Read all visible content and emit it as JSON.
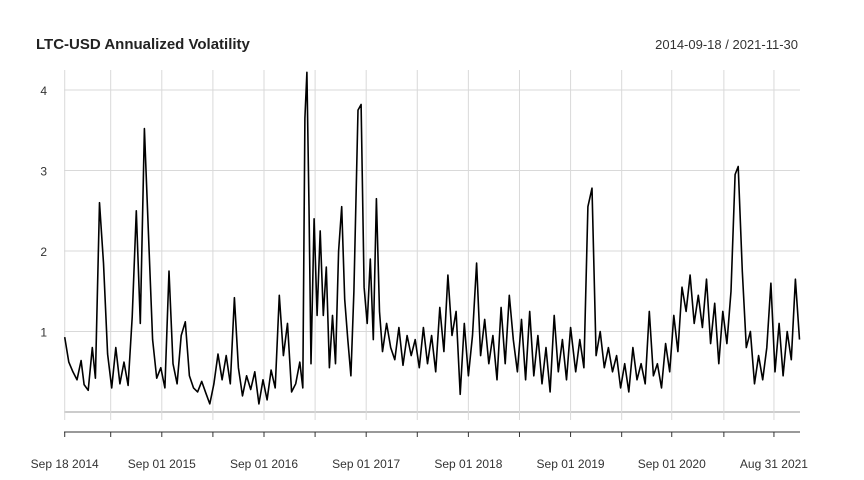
{
  "chart_data": {
    "type": "line",
    "title": "LTC-USD Annualized Volatility",
    "subtitle": "2014-09-18 / 2021-11-30",
    "xlabel": "",
    "ylabel": "",
    "x_tick_labels": [
      "Sep 18 2014",
      "Sep 01 2015",
      "Sep 01 2016",
      "Sep 01 2017",
      "Sep 01 2018",
      "Sep 01 2019",
      "Sep 01 2020",
      "Aug 31 2021"
    ],
    "y_ticks": [
      1,
      2,
      3,
      4
    ],
    "ylim": [
      0,
      4.22
    ],
    "grid": true,
    "series": [
      {
        "values": [
          [
            2014.72,
            0.93
          ],
          [
            2014.76,
            0.62
          ],
          [
            2014.8,
            0.5
          ],
          [
            2014.84,
            0.4
          ],
          [
            2014.88,
            0.64
          ],
          [
            2014.91,
            0.34
          ],
          [
            2014.95,
            0.27
          ],
          [
            2014.99,
            0.8
          ],
          [
            2015.02,
            0.42
          ],
          [
            2015.06,
            2.6
          ],
          [
            2015.1,
            1.85
          ],
          [
            2015.14,
            0.72
          ],
          [
            2015.18,
            0.3
          ],
          [
            2015.22,
            0.8
          ],
          [
            2015.26,
            0.35
          ],
          [
            2015.3,
            0.62
          ],
          [
            2015.34,
            0.33
          ],
          [
            2015.38,
            1.18
          ],
          [
            2015.42,
            2.5
          ],
          [
            2015.46,
            1.1
          ],
          [
            2015.5,
            3.52
          ],
          [
            2015.54,
            2.2
          ],
          [
            2015.58,
            0.9
          ],
          [
            2015.62,
            0.42
          ],
          [
            2015.66,
            0.55
          ],
          [
            2015.7,
            0.3
          ],
          [
            2015.74,
            1.75
          ],
          [
            2015.78,
            0.6
          ],
          [
            2015.82,
            0.35
          ],
          [
            2015.86,
            0.95
          ],
          [
            2015.9,
            1.12
          ],
          [
            2015.94,
            0.45
          ],
          [
            2015.98,
            0.3
          ],
          [
            2016.02,
            0.25
          ],
          [
            2016.06,
            0.38
          ],
          [
            2016.1,
            0.24
          ],
          [
            2016.14,
            0.1
          ],
          [
            2016.18,
            0.35
          ],
          [
            2016.22,
            0.72
          ],
          [
            2016.26,
            0.4
          ],
          [
            2016.3,
            0.7
          ],
          [
            2016.34,
            0.35
          ],
          [
            2016.38,
            1.42
          ],
          [
            2016.42,
            0.55
          ],
          [
            2016.46,
            0.2
          ],
          [
            2016.5,
            0.45
          ],
          [
            2016.54,
            0.28
          ],
          [
            2016.58,
            0.5
          ],
          [
            2016.62,
            0.1
          ],
          [
            2016.66,
            0.4
          ],
          [
            2016.7,
            0.15
          ],
          [
            2016.74,
            0.52
          ],
          [
            2016.78,
            0.3
          ],
          [
            2016.82,
            1.45
          ],
          [
            2016.86,
            0.7
          ],
          [
            2016.9,
            1.1
          ],
          [
            2016.94,
            0.25
          ],
          [
            2016.98,
            0.35
          ],
          [
            2017.02,
            0.62
          ],
          [
            2017.05,
            0.3
          ],
          [
            2017.07,
            3.65
          ],
          [
            2017.09,
            4.22
          ],
          [
            2017.11,
            2.55
          ],
          [
            2017.13,
            0.6
          ],
          [
            2017.16,
            2.4
          ],
          [
            2017.19,
            1.2
          ],
          [
            2017.22,
            2.25
          ],
          [
            2017.25,
            1.2
          ],
          [
            2017.28,
            1.8
          ],
          [
            2017.31,
            0.55
          ],
          [
            2017.34,
            1.2
          ],
          [
            2017.37,
            0.6
          ],
          [
            2017.4,
            2.0
          ],
          [
            2017.43,
            2.55
          ],
          [
            2017.46,
            1.4
          ],
          [
            2017.49,
            0.9
          ],
          [
            2017.52,
            0.45
          ],
          [
            2017.55,
            1.5
          ],
          [
            2017.59,
            3.75
          ],
          [
            2017.62,
            3.82
          ],
          [
            2017.65,
            1.55
          ],
          [
            2017.68,
            1.1
          ],
          [
            2017.71,
            1.9
          ],
          [
            2017.74,
            0.9
          ],
          [
            2017.77,
            2.65
          ],
          [
            2017.8,
            1.25
          ],
          [
            2017.83,
            0.75
          ],
          [
            2017.87,
            1.1
          ],
          [
            2017.91,
            0.8
          ],
          [
            2017.95,
            0.65
          ],
          [
            2017.99,
            1.05
          ],
          [
            2018.03,
            0.58
          ],
          [
            2018.07,
            0.95
          ],
          [
            2018.11,
            0.7
          ],
          [
            2018.15,
            0.9
          ],
          [
            2018.19,
            0.55
          ],
          [
            2018.23,
            1.05
          ],
          [
            2018.27,
            0.6
          ],
          [
            2018.31,
            0.95
          ],
          [
            2018.35,
            0.5
          ],
          [
            2018.39,
            1.3
          ],
          [
            2018.43,
            0.75
          ],
          [
            2018.47,
            1.7
          ],
          [
            2018.51,
            0.95
          ],
          [
            2018.55,
            1.25
          ],
          [
            2018.59,
            0.22
          ],
          [
            2018.63,
            1.1
          ],
          [
            2018.67,
            0.45
          ],
          [
            2018.71,
            0.95
          ],
          [
            2018.75,
            1.85
          ],
          [
            2018.79,
            0.7
          ],
          [
            2018.83,
            1.15
          ],
          [
            2018.87,
            0.6
          ],
          [
            2018.91,
            0.95
          ],
          [
            2018.95,
            0.4
          ],
          [
            2018.99,
            1.3
          ],
          [
            2019.03,
            0.6
          ],
          [
            2019.07,
            1.45
          ],
          [
            2019.11,
            0.9
          ],
          [
            2019.15,
            0.5
          ],
          [
            2019.19,
            1.15
          ],
          [
            2019.23,
            0.4
          ],
          [
            2019.27,
            1.25
          ],
          [
            2019.31,
            0.45
          ],
          [
            2019.35,
            0.95
          ],
          [
            2019.39,
            0.35
          ],
          [
            2019.43,
            0.8
          ],
          [
            2019.47,
            0.25
          ],
          [
            2019.51,
            1.2
          ],
          [
            2019.55,
            0.5
          ],
          [
            2019.59,
            0.9
          ],
          [
            2019.63,
            0.4
          ],
          [
            2019.67,
            1.05
          ],
          [
            2019.72,
            0.5
          ],
          [
            2019.76,
            0.9
          ],
          [
            2019.8,
            0.55
          ],
          [
            2019.84,
            2.55
          ],
          [
            2019.88,
            2.78
          ],
          [
            2019.92,
            0.7
          ],
          [
            2019.96,
            1.0
          ],
          [
            2020.0,
            0.55
          ],
          [
            2020.04,
            0.8
          ],
          [
            2020.08,
            0.5
          ],
          [
            2020.12,
            0.7
          ],
          [
            2020.16,
            0.3
          ],
          [
            2020.2,
            0.6
          ],
          [
            2020.24,
            0.25
          ],
          [
            2020.28,
            0.8
          ],
          [
            2020.32,
            0.4
          ],
          [
            2020.36,
            0.6
          ],
          [
            2020.4,
            0.35
          ],
          [
            2020.44,
            1.25
          ],
          [
            2020.48,
            0.45
          ],
          [
            2020.52,
            0.6
          ],
          [
            2020.56,
            0.3
          ],
          [
            2020.6,
            0.85
          ],
          [
            2020.64,
            0.5
          ],
          [
            2020.68,
            1.2
          ],
          [
            2020.72,
            0.75
          ],
          [
            2020.76,
            1.55
          ],
          [
            2020.8,
            1.25
          ],
          [
            2020.84,
            1.7
          ],
          [
            2020.88,
            1.1
          ],
          [
            2020.92,
            1.45
          ],
          [
            2020.96,
            1.05
          ],
          [
            2021.0,
            1.65
          ],
          [
            2021.04,
            0.85
          ],
          [
            2021.08,
            1.35
          ],
          [
            2021.12,
            0.6
          ],
          [
            2021.16,
            1.25
          ],
          [
            2021.2,
            0.85
          ],
          [
            2021.24,
            1.5
          ],
          [
            2021.28,
            2.95
          ],
          [
            2021.31,
            3.05
          ],
          [
            2021.35,
            1.75
          ],
          [
            2021.39,
            0.8
          ],
          [
            2021.43,
            1.0
          ],
          [
            2021.47,
            0.35
          ],
          [
            2021.51,
            0.7
          ],
          [
            2021.55,
            0.4
          ],
          [
            2021.59,
            0.8
          ],
          [
            2021.63,
            1.6
          ],
          [
            2021.67,
            0.5
          ],
          [
            2021.71,
            1.1
          ],
          [
            2021.75,
            0.45
          ],
          [
            2021.79,
            1.0
          ],
          [
            2021.83,
            0.65
          ],
          [
            2021.87,
            1.65
          ],
          [
            2021.91,
            0.9
          ]
        ]
      }
    ]
  }
}
